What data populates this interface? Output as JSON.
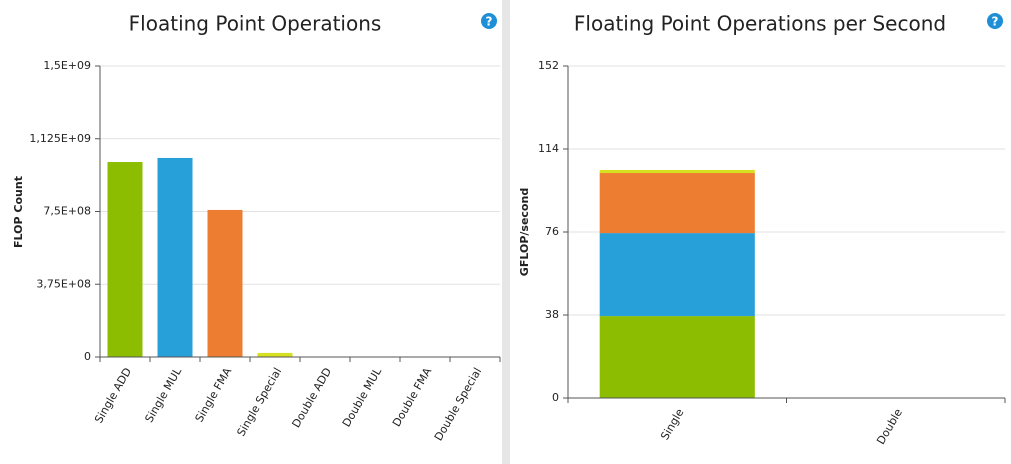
{
  "chart_data": [
    {
      "type": "bar",
      "title": "Floating Point Operations",
      "help": "?",
      "y_label": "FLOP Count",
      "categories": [
        "Single ADD",
        "Single MUL",
        "Single FMA",
        "Single Special",
        "Double ADD",
        "Double MUL",
        "Double FMA",
        "Double Special"
      ],
      "values": [
        1005000000,
        1026000000,
        758000000,
        21000000,
        0,
        0,
        0,
        0
      ],
      "colors": [
        "#8cbd00",
        "#27a0da",
        "#ed7d31",
        "#d6e021",
        "#8cbd00",
        "#27a0da",
        "#ed7d31",
        "#d6e021"
      ],
      "ylim": [
        0,
        1500000000
      ],
      "yticks": [
        0,
        {
          "value": 375000000,
          "label": "3,75E+08"
        },
        {
          "value": 750000000,
          "label": "7,5E+08"
        },
        {
          "value": 1125000000,
          "label": "1,125E+09"
        },
        {
          "value": 1500000000,
          "label": "1,5E+09"
        }
      ],
      "grid": true
    },
    {
      "type": "stacked_bar",
      "title": "Floating Point Operations per Second",
      "help": "?",
      "y_label": "GFLOP/second",
      "categories": [
        "Single",
        "Double"
      ],
      "series": [
        {
          "color": "#8cbd00",
          "values": [
            37.5,
            0
          ]
        },
        {
          "color": "#27a0da",
          "values": [
            38,
            0
          ]
        },
        {
          "color": "#ed7d31",
          "values": [
            27.5,
            0
          ]
        },
        {
          "color": "#d6e021",
          "values": [
            1.4,
            0
          ]
        }
      ],
      "ylim": [
        0,
        152
      ],
      "yticks": [
        0,
        38,
        76,
        114,
        152
      ],
      "grid": true
    }
  ]
}
